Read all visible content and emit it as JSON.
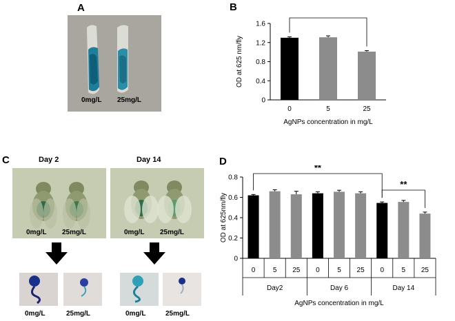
{
  "panels": {
    "a": {
      "letter": "A",
      "labels": [
        "0mg/L",
        "25mg/L"
      ]
    },
    "b": {
      "letter": "B"
    },
    "c": {
      "letter": "C",
      "days": [
        "Day 2",
        "Day 14"
      ],
      "fly_labels": [
        "0mg/L",
        "25mg/L",
        "0mg/L",
        "25mg/L"
      ],
      "gut_labels": [
        "0mg/L",
        "25mg/L",
        "0mg/L",
        "25mg/L"
      ]
    },
    "d": {
      "letter": "D"
    }
  },
  "colors": {
    "black_bar": "#000000",
    "gray_bar": "#8c8c8c",
    "blue_stain": "#1f7f9a"
  },
  "chart_data": [
    {
      "type": "bar",
      "panel": "B",
      "categories": [
        "0",
        "5",
        "25"
      ],
      "values": [
        1.3,
        1.31,
        1.01
      ],
      "errors": [
        0.02,
        0.03,
        0.02
      ],
      "bar_colors": [
        "#000000",
        "#8c8c8c",
        "#8c8c8c"
      ],
      "yticks": [
        "0",
        "0.4",
        "0.8",
        "1.2",
        "1.6"
      ],
      "ylim": [
        0,
        1.6
      ],
      "ylabel": "OD at 625 nm/fly",
      "xlabel": "AgNPs concentration in mg/L",
      "significance": [
        {
          "from": 0,
          "to": 2,
          "label": "***"
        }
      ]
    },
    {
      "type": "bar",
      "panel": "D",
      "groups": [
        "Day2",
        "Day 6",
        "Day 14"
      ],
      "categories": [
        "0",
        "5",
        "25",
        "0",
        "5",
        "25",
        "0",
        "5",
        "25"
      ],
      "values": [
        0.62,
        0.66,
        0.63,
        0.64,
        0.655,
        0.64,
        0.545,
        0.555,
        0.44
      ],
      "errors": [
        0.008,
        0.015,
        0.03,
        0.015,
        0.015,
        0.015,
        0.01,
        0.015,
        0.015
      ],
      "bar_colors": [
        "#000000",
        "#8c8c8c",
        "#8c8c8c",
        "#000000",
        "#8c8c8c",
        "#8c8c8c",
        "#000000",
        "#8c8c8c",
        "#8c8c8c"
      ],
      "yticks": [
        "0",
        "0.2",
        "0.4",
        "0.6",
        "0.8"
      ],
      "ylim": [
        0,
        0.8
      ],
      "ylabel": "OD at 625nm/fly",
      "xlabel": "AgNPs concentration in mg/L",
      "significance": [
        {
          "from": 0,
          "to": 6,
          "label": "**"
        },
        {
          "from": 6,
          "to": 8,
          "label": "**"
        }
      ]
    }
  ]
}
